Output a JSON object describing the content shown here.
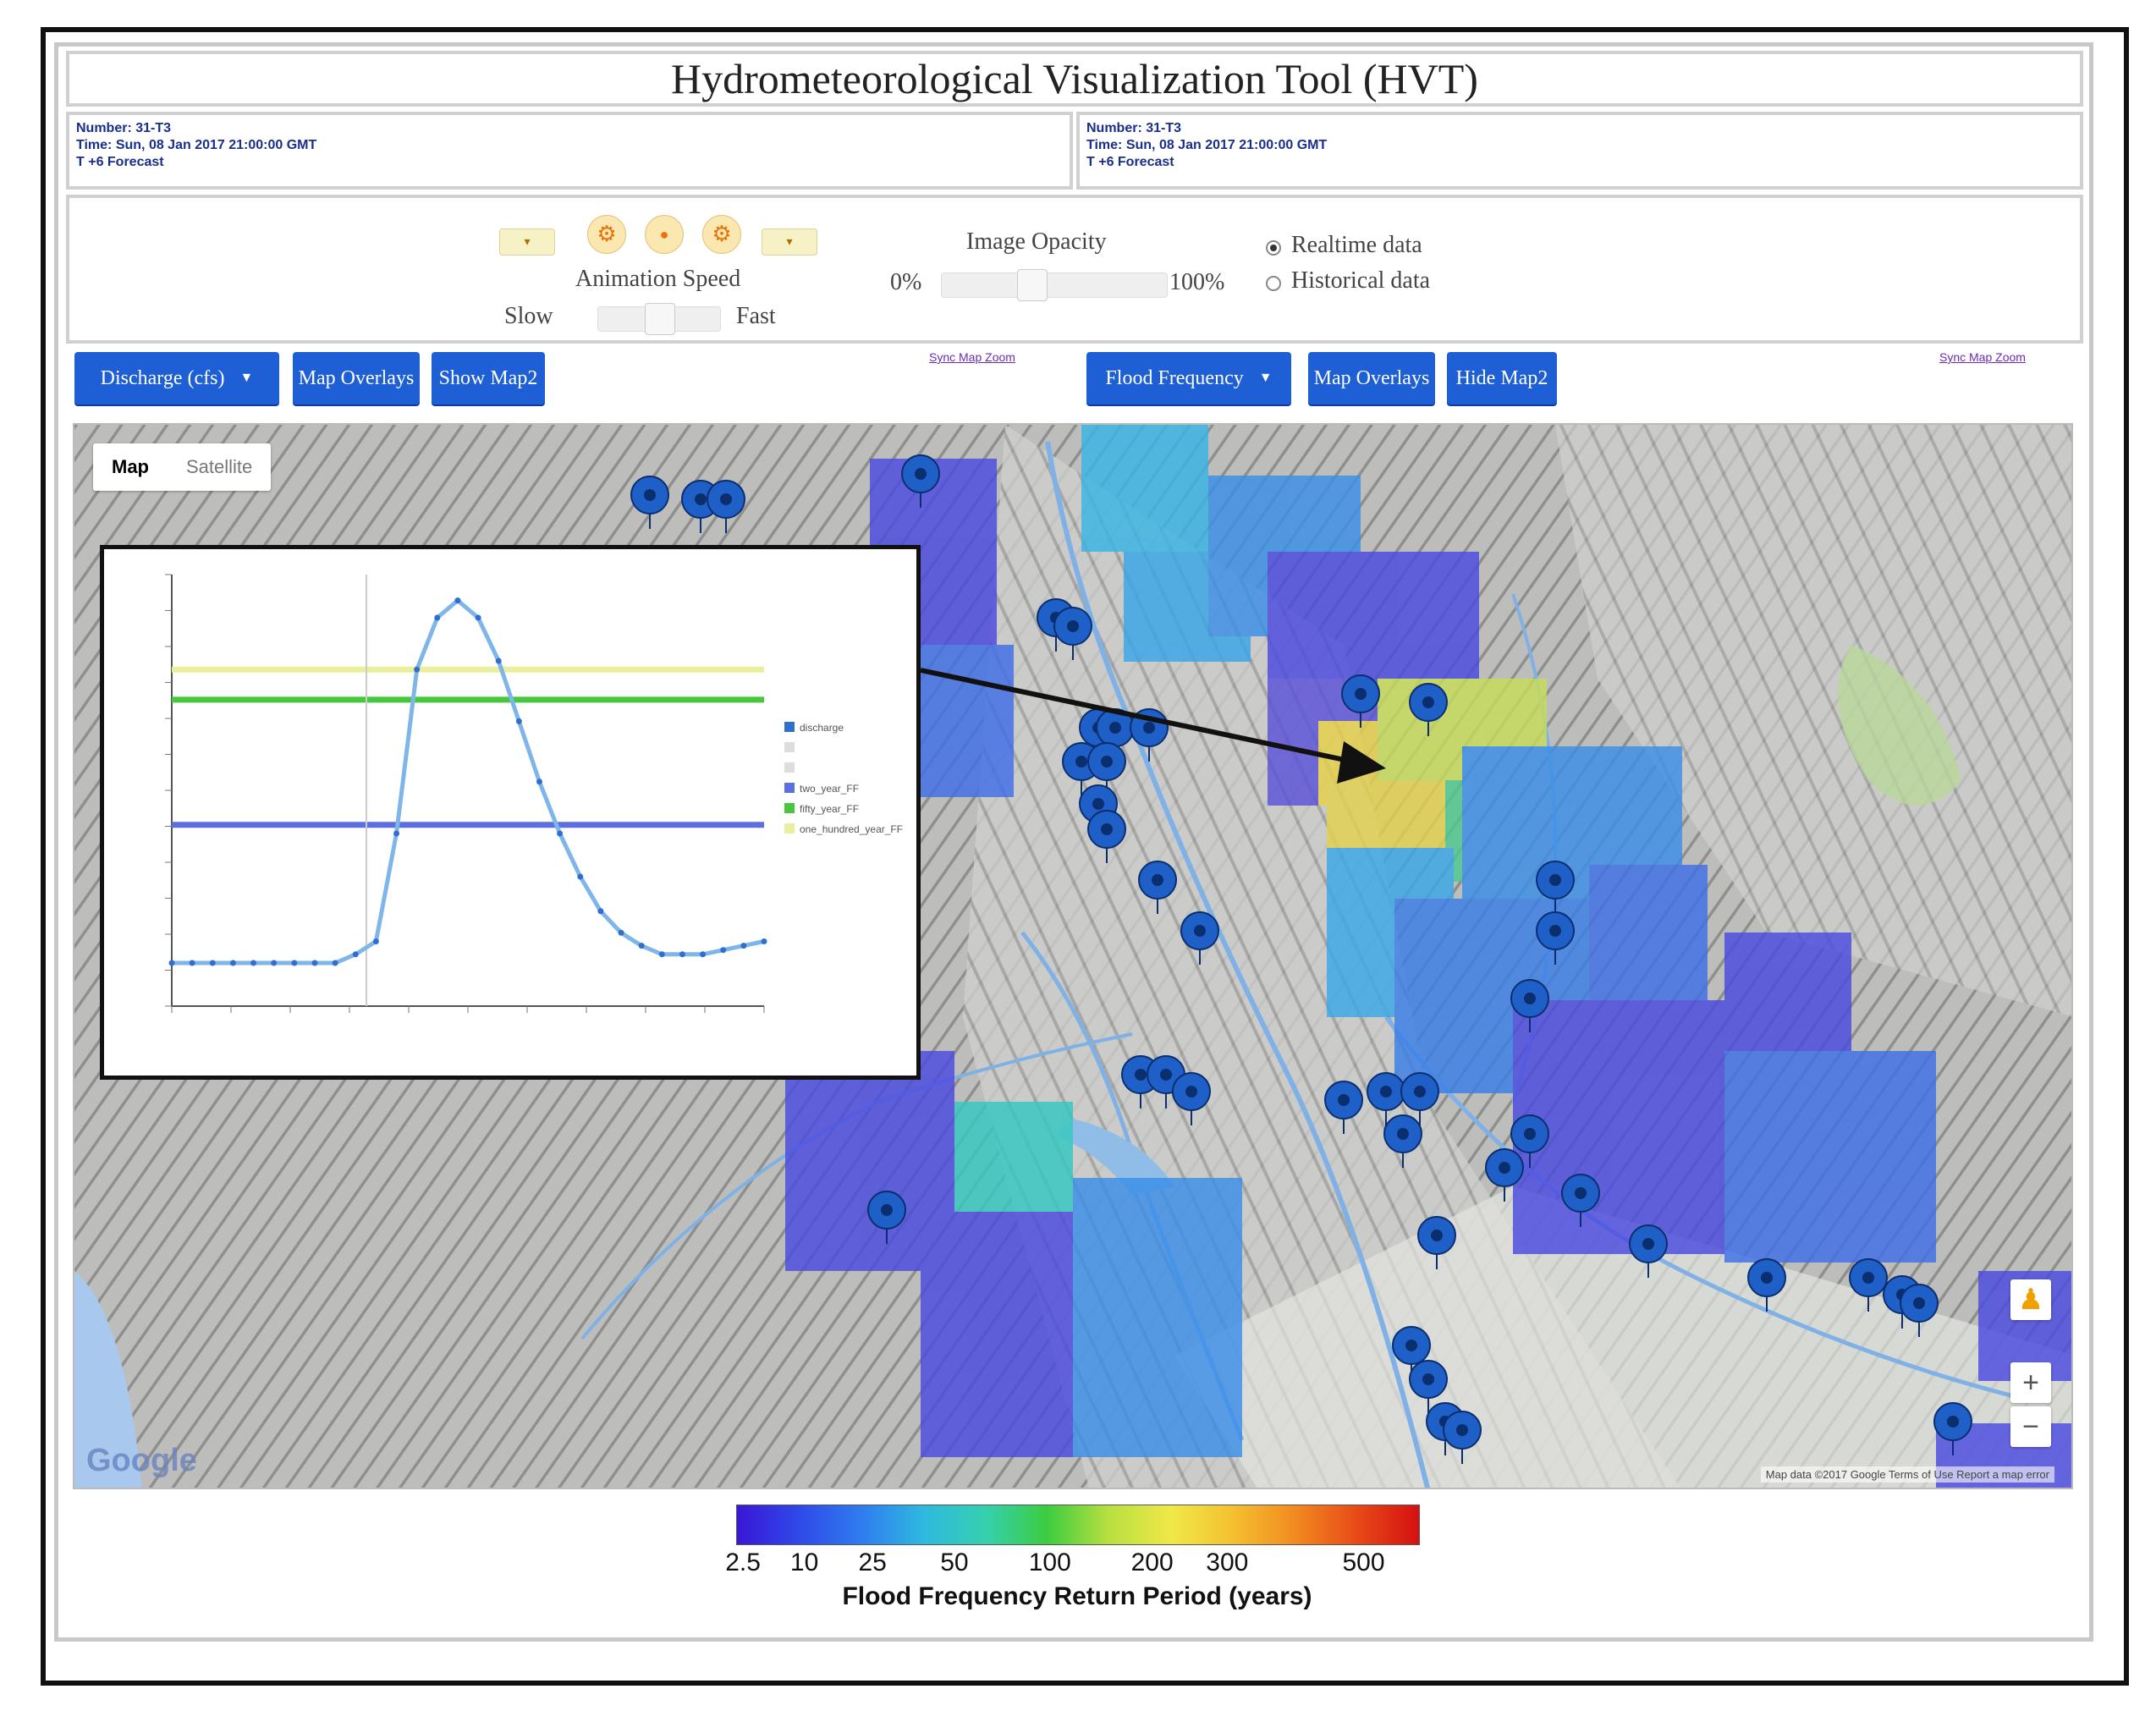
{
  "title": "Hydrometeorological Visualization Tool (HVT)",
  "info_left": {
    "line1": "Number: 31-T3",
    "line2": "Time: Sun, 08 Jan 2017 21:00:00 GMT",
    "line3": "T +6 Forecast"
  },
  "info_right": {
    "line1": "Number: 31-T3",
    "line2": "Time: Sun, 08 Jan 2017 21:00:00 GMT",
    "line3": "T +6 Forecast"
  },
  "controls": {
    "animation_label": "Animation Speed",
    "slow": "Slow",
    "fast": "Fast",
    "opacity_label": "Image Opacity",
    "opacity_min": "0%",
    "opacity_max": "100%",
    "realtime": "Realtime data",
    "historical": "Historical data"
  },
  "toolbar_left": {
    "dropdown": "Discharge (cfs)",
    "overlays": "Map Overlays",
    "show": "Show Map2",
    "sync": "Sync Map Zoom"
  },
  "toolbar_right": {
    "dropdown": "Flood Frequency",
    "overlays": "Map Overlays",
    "hide": "Hide Map2",
    "sync": "Sync Map Zoom"
  },
  "map": {
    "type_map": "Map",
    "type_satellite": "Satellite",
    "attribution": "Map data ©2017 Google  Terms of Use  Report a map error",
    "google": "Google",
    "zoom_in": "+",
    "zoom_out": "−"
  },
  "colorbar": {
    "ticks": [
      "2.5",
      "10",
      "25",
      "50",
      "100",
      "200",
      "300",
      "500"
    ],
    "label": "Flood Frequency Return Period (years)"
  },
  "chart_data": {
    "type": "line",
    "title": "",
    "xlabel": "",
    "ylabel": "",
    "legend": [
      "discharge",
      "",
      "",
      "two_year_FF",
      "fifty_year_FF",
      "one_hundred_year_FF"
    ],
    "legend_placement": "right",
    "series": [
      {
        "name": "discharge",
        "values": [
          0.1,
          0.1,
          0.1,
          0.1,
          0.1,
          0.1,
          0.1,
          0.1,
          0.1,
          0.12,
          0.15,
          0.4,
          0.78,
          0.9,
          0.94,
          0.9,
          0.8,
          0.66,
          0.52,
          0.4,
          0.3,
          0.22,
          0.17,
          0.14,
          0.12,
          0.12,
          0.12,
          0.13,
          0.14,
          0.15
        ]
      },
      {
        "name": "two_year_FF",
        "values": [
          0.42
        ]
      },
      {
        "name": "fifty_year_FF",
        "values": [
          0.71
        ]
      },
      {
        "name": "one_hundred_year_FF",
        "values": [
          0.78
        ]
      }
    ]
  }
}
